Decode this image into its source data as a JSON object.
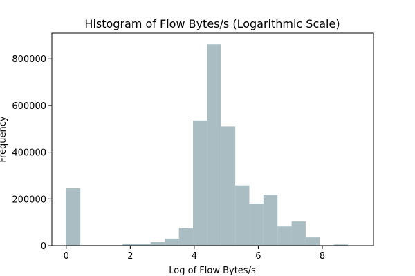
{
  "chart_data": {
    "type": "bar",
    "title": "Histogram of Flow Bytes/s (Logarithmic Scale)",
    "xlabel": "Log of Flow Bytes/s",
    "ylabel": "Frequency",
    "xlim": [
      -0.45,
      9.6
    ],
    "ylim": [
      0,
      910000
    ],
    "grid": false,
    "bar_color": "#a9bdc2",
    "x_ticks": [
      {
        "value": 0,
        "label": "0"
      },
      {
        "value": 2,
        "label": "2"
      },
      {
        "value": 4,
        "label": "4"
      },
      {
        "value": 6,
        "label": "6"
      },
      {
        "value": 8,
        "label": "8"
      }
    ],
    "y_ticks": [
      {
        "value": 0,
        "label": "0"
      },
      {
        "value": 200000,
        "label": "200000"
      },
      {
        "value": 400000,
        "label": "400000"
      },
      {
        "value": 600000,
        "label": "600000"
      },
      {
        "value": 800000,
        "label": "800000"
      }
    ],
    "bins": [
      {
        "x0": 0.0,
        "x1": 0.44,
        "value": 245000
      },
      {
        "x0": 0.44,
        "x1": 0.88,
        "value": 2000
      },
      {
        "x0": 0.88,
        "x1": 1.32,
        "value": 2000
      },
      {
        "x0": 1.32,
        "x1": 1.76,
        "value": 2000
      },
      {
        "x0": 1.76,
        "x1": 2.2,
        "value": 8000
      },
      {
        "x0": 2.2,
        "x1": 2.64,
        "value": 8000
      },
      {
        "x0": 2.64,
        "x1": 3.08,
        "value": 15000
      },
      {
        "x0": 3.08,
        "x1": 3.52,
        "value": 30000
      },
      {
        "x0": 3.52,
        "x1": 3.96,
        "value": 75000
      },
      {
        "x0": 3.96,
        "x1": 4.4,
        "value": 535000
      },
      {
        "x0": 4.4,
        "x1": 4.84,
        "value": 862000
      },
      {
        "x0": 4.84,
        "x1": 5.28,
        "value": 510000
      },
      {
        "x0": 5.28,
        "x1": 5.72,
        "value": 258000
      },
      {
        "x0": 5.72,
        "x1": 6.16,
        "value": 180000
      },
      {
        "x0": 6.16,
        "x1": 6.6,
        "value": 218000
      },
      {
        "x0": 6.6,
        "x1": 7.04,
        "value": 82000
      },
      {
        "x0": 7.04,
        "x1": 7.48,
        "value": 103000
      },
      {
        "x0": 7.48,
        "x1": 7.92,
        "value": 35000
      },
      {
        "x0": 7.92,
        "x1": 8.36,
        "value": 2000
      },
      {
        "x0": 8.36,
        "x1": 8.8,
        "value": 5000
      },
      {
        "x0": 8.8,
        "x1": 9.24,
        "value": 1000
      }
    ]
  }
}
